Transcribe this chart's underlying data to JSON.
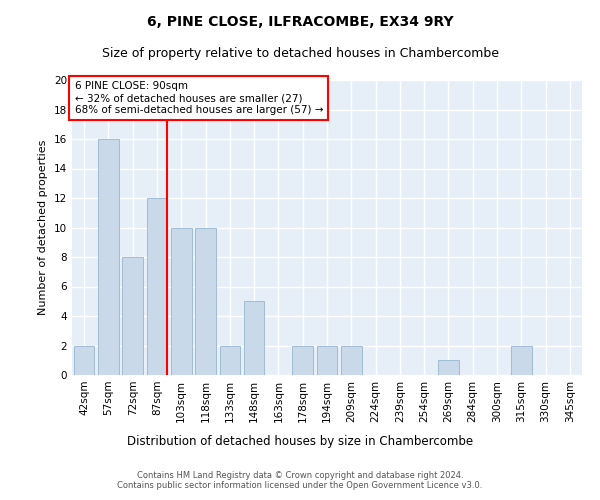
{
  "title": "6, PINE CLOSE, ILFRACOMBE, EX34 9RY",
  "subtitle": "Size of property relative to detached houses in Chambercombe",
  "xlabel": "Distribution of detached houses by size in Chambercombe",
  "ylabel": "Number of detached properties",
  "categories": [
    "42sqm",
    "57sqm",
    "72sqm",
    "87sqm",
    "103sqm",
    "118sqm",
    "133sqm",
    "148sqm",
    "163sqm",
    "178sqm",
    "194sqm",
    "209sqm",
    "224sqm",
    "239sqm",
    "254sqm",
    "269sqm",
    "284sqm",
    "300sqm",
    "315sqm",
    "330sqm",
    "345sqm"
  ],
  "values": [
    2,
    16,
    8,
    12,
    10,
    10,
    2,
    5,
    0,
    2,
    2,
    2,
    0,
    0,
    0,
    1,
    0,
    0,
    2,
    0,
    0
  ],
  "bar_color": "#c9d9ea",
  "bar_edgecolor": "#a0bcd4",
  "background_color": "#e6eff7",
  "grid_color": "#ffffff",
  "vline_x_index": 3,
  "vline_color": "red",
  "annotation_text": "6 PINE CLOSE: 90sqm\n← 32% of detached houses are smaller (27)\n68% of semi-detached houses are larger (57) →",
  "annotation_box_color": "white",
  "annotation_box_edgecolor": "red",
  "ylim": [
    0,
    20
  ],
  "yticks": [
    0,
    2,
    4,
    6,
    8,
    10,
    12,
    14,
    16,
    18,
    20
  ],
  "footer_text": "Contains HM Land Registry data © Crown copyright and database right 2024.\nContains public sector information licensed under the Open Government Licence v3.0.",
  "title_fontsize": 10,
  "subtitle_fontsize": 9,
  "ylabel_fontsize": 8,
  "xlabel_fontsize": 8.5,
  "tick_fontsize": 7.5,
  "footer_fontsize": 6,
  "annotation_fontsize": 7.5
}
